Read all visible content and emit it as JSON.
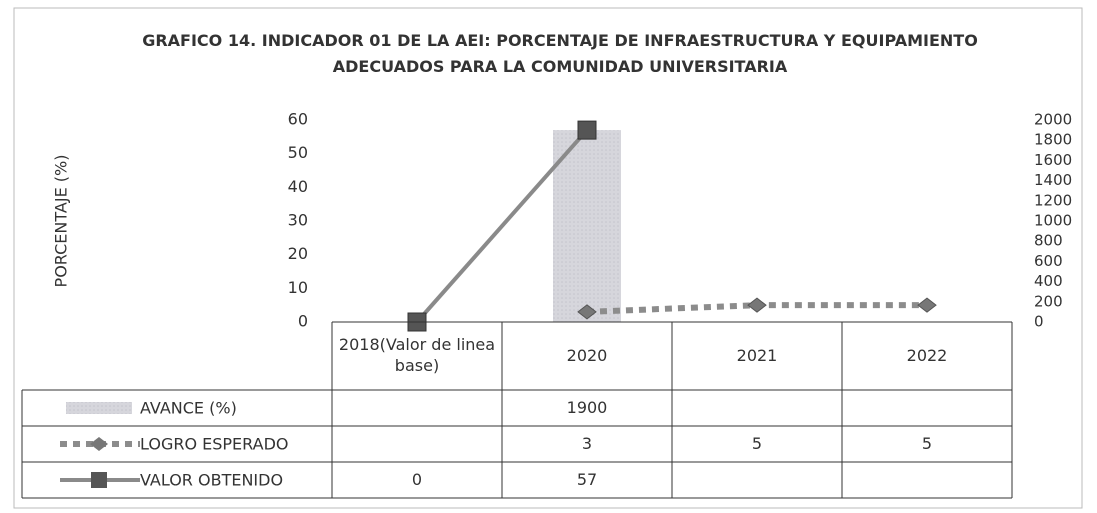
{
  "chart_data": {
    "type": "bar-line",
    "title": "GRAFICO 14. INDICADOR 01 DE LA AEI: PORCENTAJE DE INFRAESTRUCTURA Y EQUIPAMIENTO ADECUADOS PARA LA COMUNIDAD UNIVERSITARIA",
    "y_label": "PORCENTAJE (%)",
    "categories": [
      "2018(Valor de linea base)",
      "2020",
      "2021",
      "2022"
    ],
    "series": [
      {
        "name": "AVANCE (%)",
        "type": "bar",
        "color": "#d6d6dc",
        "axis": "y2",
        "values": [
          null,
          1900,
          null,
          null
        ]
      },
      {
        "name": "LOGRO ESPERADO",
        "type": "line",
        "style": "dotted",
        "marker": "diamond",
        "color": "#8c8c8c",
        "values": [
          null,
          3,
          5,
          5
        ]
      },
      {
        "name": "VALOR OBTENIDO",
        "type": "line",
        "style": "solid",
        "marker": "square",
        "color": "#8a8a8a",
        "values": [
          0,
          57,
          null,
          null
        ]
      }
    ],
    "ylim": [
      0,
      60
    ],
    "yticks": [
      0,
      10,
      20,
      30,
      40,
      50,
      60
    ],
    "y2lim": [
      0,
      2000
    ],
    "y2ticks": [
      0,
      200,
      400,
      600,
      800,
      1000,
      1200,
      1400,
      1600,
      1800,
      2000
    ],
    "data_table": true
  }
}
